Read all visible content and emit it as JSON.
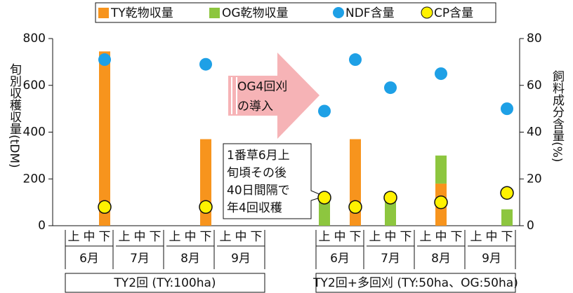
{
  "chart_data": {
    "type": "bar",
    "categories": [
      "上",
      "中",
      "下",
      "上",
      "中",
      "下",
      "上",
      "中",
      "下",
      "上",
      "中",
      "下",
      "上",
      "中",
      "下",
      "上",
      "中",
      "下",
      "上",
      "中",
      "下",
      "上",
      "中",
      "下"
    ],
    "month_labels": [
      "6月",
      "7月",
      "8月",
      "9月",
      "6月",
      "7月",
      "8月",
      "9月"
    ],
    "group_labels": [
      "TY2回 (TY:100ha)",
      "TY2回+多回刈 (TY:50ha、OG:50ha)"
    ],
    "ylabel": "旬別収穫収量(tDM)",
    "y2label": "飼料成分含量(%)",
    "annotations": [
      "OG4回刈",
      "の導入",
      "1番草6月上",
      "旬頃その後",
      "40日間隔で",
      "年4回収穫"
    ],
    "ylim": [
      0,
      800
    ],
    "yticks": [
      0,
      200,
      400,
      600,
      800
    ],
    "y2lim": [
      0,
      80
    ],
    "y2ticks": [
      0,
      20,
      40,
      60,
      80
    ],
    "series": [
      {
        "name": "TY乾物収量",
        "type": "bar",
        "color": "#f7941d",
        "values": [
          null,
          null,
          745,
          null,
          null,
          null,
          null,
          null,
          370,
          null,
          null,
          null,
          null,
          null,
          370,
          null,
          null,
          null,
          null,
          180,
          null,
          null,
          null,
          null
        ]
      },
      {
        "name": "OG乾物収量",
        "type": "bar",
        "color": "#8dc63f",
        "values": [
          null,
          null,
          null,
          null,
          null,
          null,
          null,
          null,
          null,
          null,
          null,
          null,
          110,
          null,
          null,
          null,
          140,
          null,
          null,
          120,
          null,
          null,
          null,
          70
        ]
      },
      {
        "name": "NDF含量",
        "type": "scatter",
        "axis": "y2",
        "color": "#1ea0e6",
        "values": [
          null,
          null,
          71,
          null,
          null,
          null,
          null,
          null,
          69,
          null,
          null,
          null,
          49,
          null,
          71,
          null,
          59,
          null,
          null,
          65,
          null,
          null,
          null,
          50
        ]
      },
      {
        "name": "CP含量",
        "type": "scatter",
        "axis": "y2",
        "color": "#fff200",
        "values": [
          null,
          null,
          8,
          null,
          null,
          null,
          null,
          null,
          8,
          null,
          null,
          null,
          12,
          null,
          8,
          null,
          12,
          null,
          null,
          10,
          null,
          null,
          null,
          14
        ]
      }
    ]
  }
}
